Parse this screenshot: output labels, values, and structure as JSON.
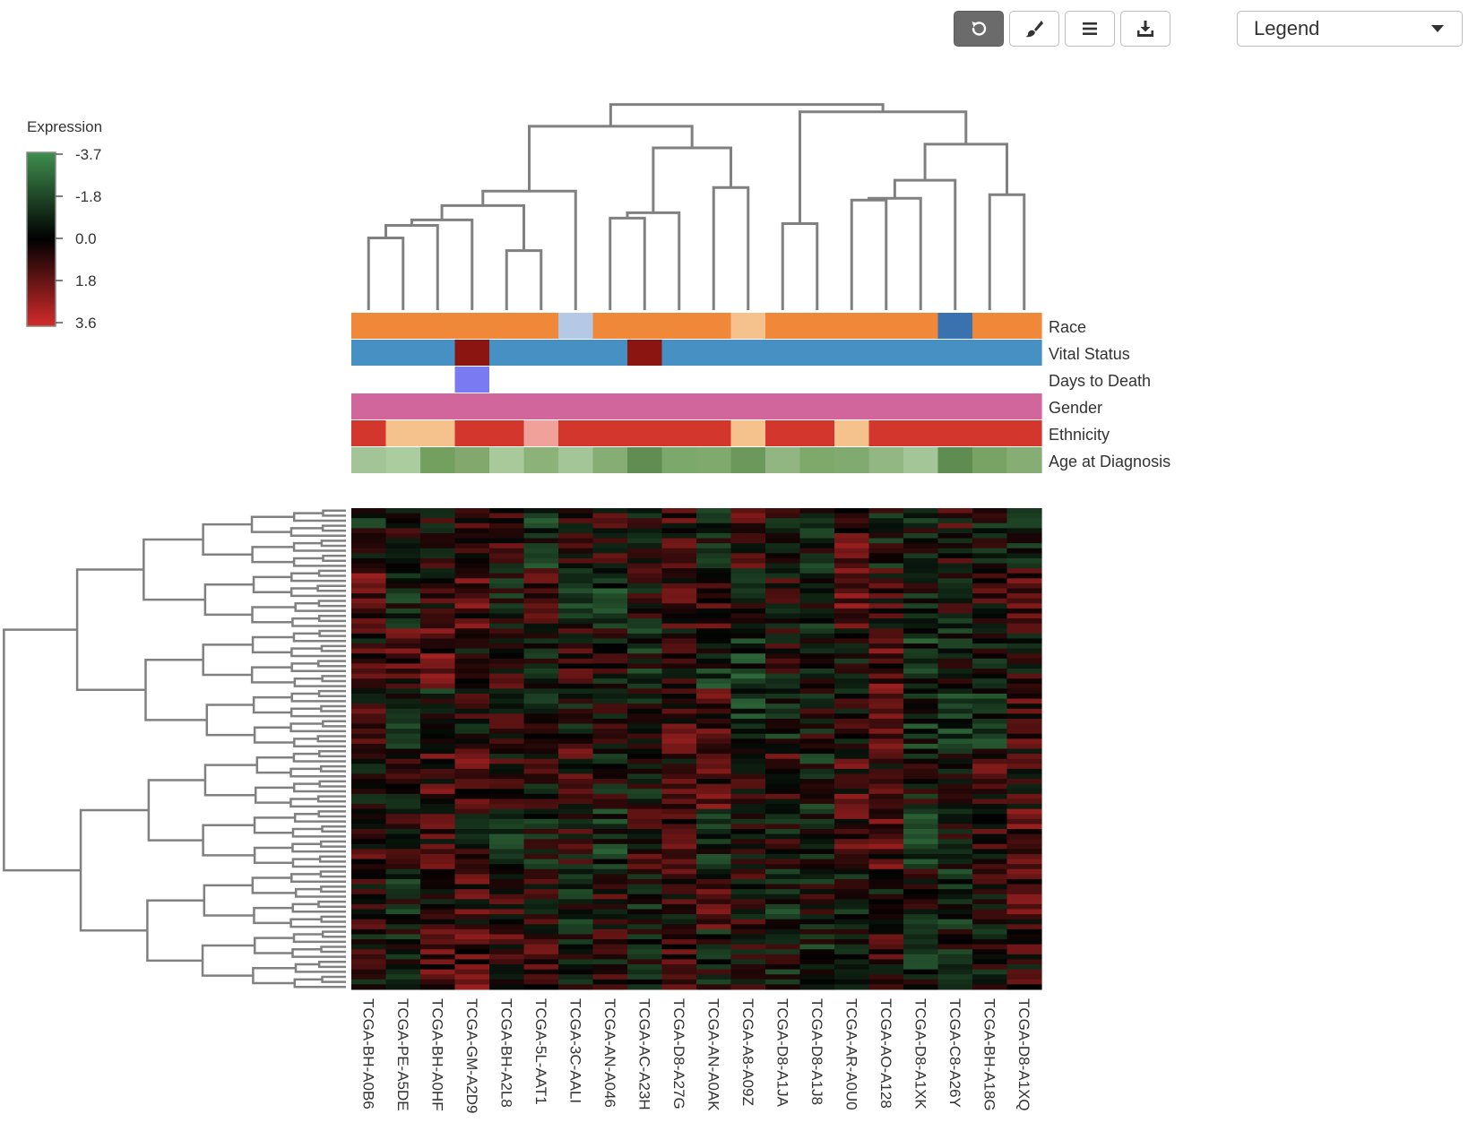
{
  "toolbar": {
    "buttons": [
      {
        "name": "reset-button",
        "icon": "undo-icon",
        "active": true
      },
      {
        "name": "color-button",
        "icon": "brush-icon",
        "active": false
      },
      {
        "name": "menu-button",
        "icon": "menu-icon",
        "active": false
      },
      {
        "name": "download-button",
        "icon": "download-icon",
        "active": false
      }
    ],
    "legend_select_value": "Legend"
  },
  "chart_data": {
    "type": "heatmap",
    "color_scale": {
      "title": "Expression",
      "ticks": [
        "-3.7",
        "-1.8",
        "0.0",
        "1.8",
        "3.6"
      ],
      "min": -3.7,
      "max": 3.6,
      "low_color": "#3f8f4f",
      "mid_color": "#000000",
      "high_color": "#d42b2b"
    },
    "samples": [
      "TCGA-BH-A0B6",
      "TCGA-PE-A5DE",
      "TCGA-BH-A0HF",
      "TCGA-GM-A2D9",
      "TCGA-BH-A2L8",
      "TCGA-5L-AAT1",
      "TCGA-3C-AALI",
      "TCGA-AN-A046",
      "TCGA-AC-A23H",
      "TCGA-D8-A27G",
      "TCGA-AN-A0AK",
      "TCGA-A8-A09Z",
      "TCGA-D8-A1JA",
      "TCGA-D8-A1J8",
      "TCGA-AR-A0U0",
      "TCGA-AO-A128",
      "TCGA-D8-A1XK",
      "TCGA-C8-A26Y",
      "TCGA-BH-A18G",
      "TCGA-D8-A1XQ"
    ],
    "annotation_tracks": [
      {
        "label": "Race",
        "colors": [
          "#f0883a",
          "#f0883a",
          "#f0883a",
          "#f0883a",
          "#f0883a",
          "#f0883a",
          "#b5c8e6",
          "#f0883a",
          "#f0883a",
          "#f0883a",
          "#f0883a",
          "#f5c28d",
          "#f0883a",
          "#f0883a",
          "#f0883a",
          "#f0883a",
          "#f0883a",
          "#3a72b0",
          "#f0883a",
          "#f0883a"
        ]
      },
      {
        "label": "Vital Status",
        "colors": [
          "#4690c4",
          "#4690c4",
          "#4690c4",
          "#8b1511",
          "#4690c4",
          "#4690c4",
          "#4690c4",
          "#4690c4",
          "#8b1511",
          "#4690c4",
          "#4690c4",
          "#4690c4",
          "#4690c4",
          "#4690c4",
          "#4690c4",
          "#4690c4",
          "#4690c4",
          "#4690c4",
          "#4690c4",
          "#4690c4"
        ]
      },
      {
        "label": "Days to Death",
        "colors": [
          "#ffffff",
          "#ffffff",
          "#ffffff",
          "#7a7af2",
          "#ffffff",
          "#ffffff",
          "#ffffff",
          "#ffffff",
          "#ffffff",
          "#ffffff",
          "#ffffff",
          "#ffffff",
          "#ffffff",
          "#ffffff",
          "#ffffff",
          "#ffffff",
          "#ffffff",
          "#ffffff",
          "#ffffff",
          "#ffffff"
        ]
      },
      {
        "label": "Gender",
        "colors": [
          "#d1669c",
          "#d1669c",
          "#d1669c",
          "#d1669c",
          "#d1669c",
          "#d1669c",
          "#d1669c",
          "#d1669c",
          "#d1669c",
          "#d1669c",
          "#d1669c",
          "#d1669c",
          "#d1669c",
          "#d1669c",
          "#d1669c",
          "#d1669c",
          "#d1669c",
          "#d1669c",
          "#d1669c",
          "#d1669c"
        ]
      },
      {
        "label": "Ethnicity",
        "colors": [
          "#d3362c",
          "#f5c28d",
          "#f5c28d",
          "#d3362c",
          "#d3362c",
          "#f0a29a",
          "#d3362c",
          "#d3362c",
          "#d3362c",
          "#d3362c",
          "#d3362c",
          "#f5c28d",
          "#d3362c",
          "#d3362c",
          "#f5c28d",
          "#d3362c",
          "#d3362c",
          "#d3362c",
          "#d3362c",
          "#d3362c"
        ]
      },
      {
        "label": "Age at Diagnosis",
        "colors": [
          "#a3c496",
          "#abcc9e",
          "#739f5f",
          "#82a86e",
          "#a9c99b",
          "#8cb27a",
          "#a4c597",
          "#86ad73",
          "#618d52",
          "#7da86b",
          "#80a96d",
          "#6c995b",
          "#91b681",
          "#7fa86b",
          "#81aa70",
          "#92b783",
          "#a4c597",
          "#5f8c51",
          "#78a365",
          "#86ad74"
        ]
      }
    ],
    "column_dendrogram": [
      {
        "left": 0,
        "right": 1,
        "height": 0.2
      },
      {
        "left": 4,
        "right": 5,
        "height": 0.165
      },
      {
        "left": "n0",
        "right": 2,
        "height": 0.235
      },
      {
        "left": "n2",
        "right": 3,
        "height": 0.25
      },
      {
        "left": "n3",
        "right": "n1",
        "height": 0.29
      },
      {
        "left": "n4",
        "right": 6,
        "height": 0.33
      },
      {
        "left": 7,
        "right": 8,
        "height": 0.255
      },
      {
        "left": "n6",
        "right": 9,
        "height": 0.27
      },
      {
        "left": 10,
        "right": 11,
        "height": 0.34
      },
      {
        "left": "n7",
        "right": "n8",
        "height": 0.45
      },
      {
        "left": "n5",
        "right": "n9",
        "height": 0.51
      },
      {
        "left": 12,
        "right": 13,
        "height": 0.24
      },
      {
        "left": 14,
        "right": 15,
        "height": 0.305
      },
      {
        "left": "n12",
        "right": 16,
        "height": 0.31
      },
      {
        "left": "n13",
        "right": 17,
        "height": 0.36
      },
      {
        "left": 18,
        "right": 19,
        "height": 0.32
      },
      {
        "left": "n14",
        "right": "n15",
        "height": 0.46
      },
      {
        "left": "n11",
        "right": "n16",
        "height": 0.55
      },
      {
        "left": "n10",
        "right": "n17",
        "height": 0.57
      }
    ],
    "gene_count": 96
  }
}
